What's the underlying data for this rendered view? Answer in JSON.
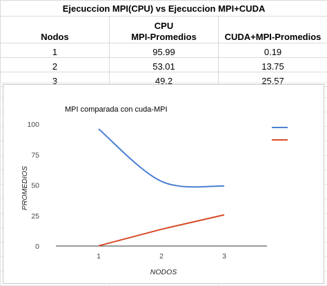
{
  "sheet": {
    "title": "Ejecuccion MPI(CPU) vs Ejecuccion MPI+CUDA",
    "headers": {
      "nodos": "Nodos",
      "cpu_line1": "CPU",
      "cpu_line2": "MPI-Promedios",
      "cuda": "CUDA+MPI-Promedios"
    },
    "rows": [
      {
        "nodos": "1",
        "mpi": "95.99",
        "cuda": "0.19"
      },
      {
        "nodos": "2",
        "mpi": "53.01",
        "cuda": "13.75"
      },
      {
        "nodos": "3",
        "mpi": "49.2",
        "cuda": "25.57"
      }
    ]
  },
  "chart_data": {
    "type": "line",
    "title": "MPI comparada con cuda-MPI",
    "xlabel": "NODOS",
    "ylabel": "PROMEDIOS",
    "x": [
      1,
      2,
      3
    ],
    "yticks": [
      0,
      25,
      50,
      75,
      100
    ],
    "ylim": [
      0,
      100
    ],
    "grid": false,
    "legend": "right",
    "series": [
      {
        "values": [
          95.99,
          53.01,
          49.2
        ],
        "color": "#4a7fd4",
        "smooth": true
      },
      {
        "values": [
          0.19,
          13.75,
          25.57
        ],
        "color": "#d64a26",
        "smooth": false
      }
    ]
  }
}
